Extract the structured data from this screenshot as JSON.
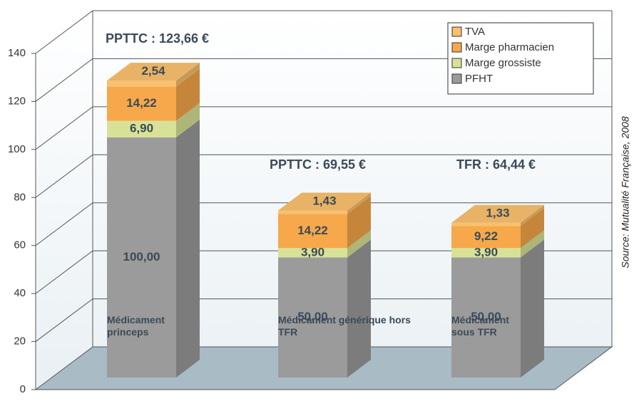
{
  "chart_data": {
    "type": "bar3d_stacked",
    "categories": [
      "Médicament princeps",
      "Médicament générique hors TFR",
      "Médicament sous TFR"
    ],
    "series": [
      {
        "name": "PFHT",
        "color": "#9b9b9b",
        "values": [
          100,
          50,
          50
        ],
        "value_labels": [
          "100,00",
          "50,00",
          "50,00"
        ]
      },
      {
        "name": "Marge grossiste",
        "color": "#d8e297",
        "values": [
          6.9,
          3.9,
          3.9
        ],
        "value_labels": [
          "6,90",
          "3,90",
          "3,90"
        ]
      },
      {
        "name": "Marge pharmacien",
        "color": "#f6a84a",
        "values": [
          14.22,
          14.22,
          9.22
        ],
        "value_labels": [
          "14,22",
          "14,22",
          "9,22"
        ]
      },
      {
        "name": "TVA",
        "color": "#f9c06e",
        "values": [
          2.54,
          1.43,
          1.33
        ],
        "value_labels": [
          "2,54",
          "1,43",
          "1,33"
        ]
      }
    ],
    "annotations": [
      "PPTTC : 123,66 €",
      "PPTTC : 69,55 €",
      "TFR : 64,44 €"
    ],
    "source": "Source: Mutualité Française, 2008",
    "ylim": [
      0,
      140
    ],
    "yticks": [
      0,
      20,
      40,
      60,
      80,
      100,
      120,
      140
    ],
    "grid": true,
    "legend": "top-right",
    "stacked": true
  }
}
